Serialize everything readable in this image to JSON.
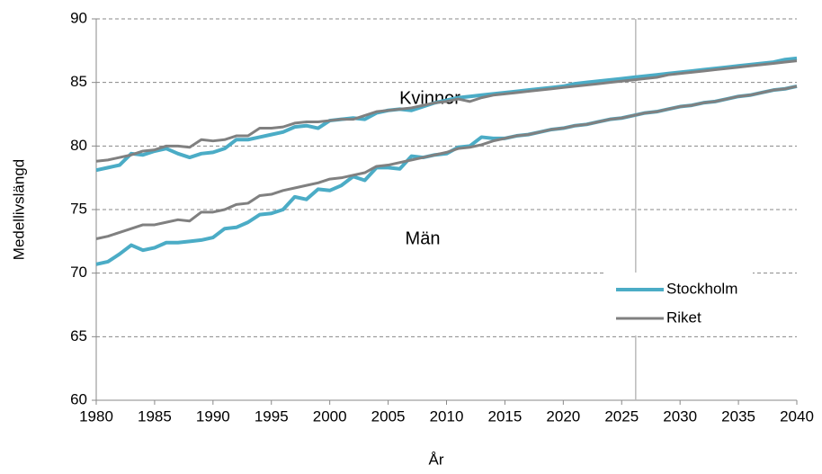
{
  "chart_data": {
    "type": "line",
    "xlabel": "År",
    "ylabel": "Medellivslängd",
    "annotations": [
      "Kvinnor",
      "Män"
    ],
    "x": [
      1980,
      1981,
      1982,
      1983,
      1984,
      1985,
      1986,
      1987,
      1988,
      1989,
      1990,
      1991,
      1992,
      1993,
      1994,
      1995,
      1996,
      1997,
      1998,
      1999,
      2000,
      2001,
      2002,
      2003,
      2004,
      2005,
      2006,
      2007,
      2008,
      2009,
      2010,
      2011,
      2012,
      2013,
      2014,
      2015,
      2016,
      2017,
      2018,
      2019,
      2020,
      2021,
      2022,
      2023,
      2024,
      2025,
      2026,
      2027,
      2028,
      2029,
      2030,
      2031,
      2032,
      2033,
      2034,
      2035,
      2036,
      2037,
      2038,
      2039,
      2040
    ],
    "series": [
      {
        "name": "Stockholm",
        "color": "#4bacc6",
        "lines": [
          [
            78.1,
            78.3,
            78.5,
            79.4,
            79.3,
            79.6,
            79.8,
            79.4,
            79.1,
            79.4,
            79.5,
            79.8,
            80.5,
            80.5,
            80.7,
            80.9,
            81.1,
            81.5,
            81.6,
            81.4,
            82.0,
            82.1,
            82.2,
            82.1,
            82.6,
            82.8,
            82.9,
            82.8,
            83.1,
            83.4,
            83.6,
            83.8,
            83.9,
            84.0,
            84.1,
            84.2,
            84.3,
            84.4,
            84.5,
            84.6,
            84.7,
            84.9,
            85.0,
            85.1,
            85.2,
            85.3,
            85.4,
            85.5,
            85.6,
            85.7,
            85.8,
            85.9,
            86.0,
            86.1,
            86.2,
            86.3,
            86.4,
            86.5,
            86.6,
            86.8,
            86.9
          ],
          [
            70.7,
            70.9,
            71.5,
            72.2,
            71.8,
            72.0,
            72.4,
            72.4,
            72.5,
            72.6,
            72.8,
            73.5,
            73.6,
            74.0,
            74.6,
            74.7,
            75.0,
            76.0,
            75.8,
            76.6,
            76.5,
            76.9,
            77.6,
            77.3,
            78.3,
            78.3,
            78.2,
            79.2,
            79.1,
            79.3,
            79.4,
            79.9,
            80.0,
            80.7,
            80.6,
            80.6,
            80.8,
            80.9,
            81.1,
            81.3,
            81.4,
            81.6,
            81.7,
            81.9,
            82.1,
            82.2,
            82.4,
            82.6,
            82.7,
            82.9,
            83.1,
            83.2,
            83.4,
            83.5,
            83.7,
            83.9,
            84.0,
            84.2,
            84.4,
            84.5,
            84.7
          ]
        ]
      },
      {
        "name": "Riket",
        "color": "#808080",
        "lines": [
          [
            78.8,
            78.9,
            79.1,
            79.3,
            79.6,
            79.7,
            80.0,
            80.0,
            79.9,
            80.5,
            80.4,
            80.5,
            80.8,
            80.8,
            81.4,
            81.4,
            81.5,
            81.8,
            81.9,
            81.9,
            82.0,
            82.1,
            82.1,
            82.4,
            82.7,
            82.8,
            82.9,
            83.0,
            83.2,
            83.4,
            83.5,
            83.7,
            83.5,
            83.8,
            84.0,
            84.1,
            84.2,
            84.3,
            84.4,
            84.5,
            84.6,
            84.7,
            84.8,
            84.9,
            85.0,
            85.1,
            85.2,
            85.3,
            85.4,
            85.6,
            85.7,
            85.8,
            85.9,
            86.0,
            86.1,
            86.2,
            86.3,
            86.4,
            86.5,
            86.6,
            86.7
          ],
          [
            72.7,
            72.9,
            73.2,
            73.5,
            73.8,
            73.8,
            74.0,
            74.2,
            74.1,
            74.8,
            74.8,
            75.0,
            75.4,
            75.5,
            76.1,
            76.2,
            76.5,
            76.7,
            76.9,
            77.1,
            77.4,
            77.5,
            77.7,
            77.9,
            78.4,
            78.5,
            78.7,
            78.9,
            79.1,
            79.3,
            79.5,
            79.8,
            79.9,
            80.1,
            80.4,
            80.6,
            80.8,
            80.9,
            81.1,
            81.3,
            81.4,
            81.6,
            81.7,
            81.9,
            82.1,
            82.2,
            82.4,
            82.6,
            82.7,
            82.9,
            83.1,
            83.2,
            83.4,
            83.5,
            83.7,
            83.9,
            84.0,
            84.2,
            84.4,
            84.5,
            84.7
          ]
        ]
      }
    ],
    "vline": 2026.2,
    "xlim": [
      1980,
      2040
    ],
    "xticks": [
      1980,
      1985,
      1990,
      1995,
      2000,
      2005,
      2010,
      2015,
      2020,
      2025,
      2030,
      2035,
      2040
    ],
    "ylim": [
      60,
      90
    ],
    "yticks": [
      60,
      65,
      70,
      75,
      80,
      85,
      90
    ],
    "grid": true
  }
}
